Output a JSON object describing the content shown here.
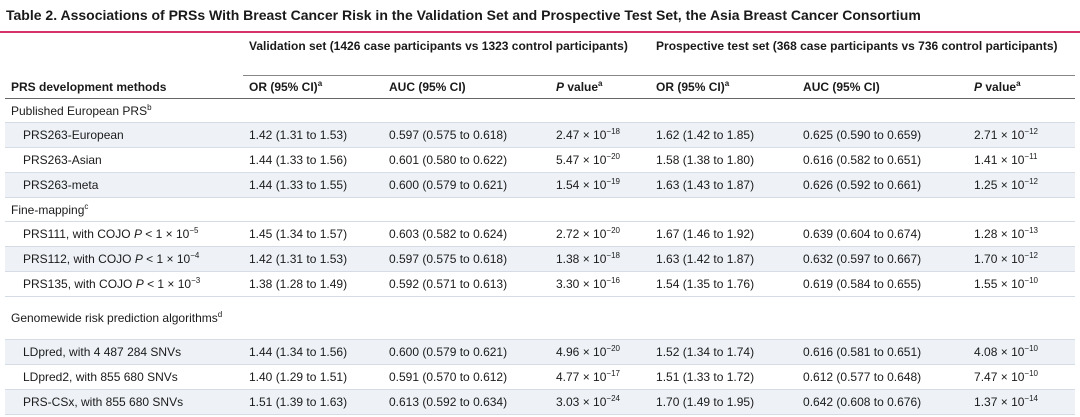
{
  "title": "Table 2. Associations of PRSs With Breast Cancer Risk in the Validation Set and Prospective Test Set, the Asia Breast Cancer Consortium",
  "header": {
    "row_label": "PRS development methods",
    "groups": [
      "Validation set (1426 case participants vs 1323 control participants)",
      "Prospective test set (368 case participants vs 736 control participants)"
    ],
    "columns": [
      {
        "text": "OR (95% CI)",
        "sup": "a"
      },
      "AUC (95% CI)",
      {
        "italic": "P",
        "text": " value",
        "sup": "a"
      },
      {
        "text": "OR (95% CI)",
        "sup": "a"
      },
      "AUC (95% CI)",
      {
        "italic": "P",
        "text": " value",
        "sup": "a"
      }
    ]
  },
  "sections": [
    {
      "label": {
        "text": "Published European PRS",
        "sup": "b"
      },
      "rows": [
        {
          "label": "PRS263-European",
          "cells": [
            "1.42 (1.31 to 1.53)",
            "0.597 (0.575 to 0.618)",
            {
              "mantissa": "2.47 × 10",
              "exponent": "−18"
            },
            "1.62 (1.42 to 1.85)",
            "0.625 (0.590 to 0.659)",
            {
              "mantissa": "2.71 × 10",
              "exponent": "−12"
            }
          ]
        },
        {
          "label": "PRS263-Asian",
          "cells": [
            "1.44 (1.33 to 1.56)",
            "0.601 (0.580 to 0.622)",
            {
              "mantissa": "5.47 × 10",
              "exponent": "−20"
            },
            "1.58 (1.38 to 1.80)",
            "0.616 (0.582 to 0.651)",
            {
              "mantissa": "1.41 × 10",
              "exponent": "−11"
            }
          ]
        },
        {
          "label": "PRS263-meta",
          "cells": [
            "1.44 (1.33 to 1.55)",
            "0.600 (0.579 to 0.621)",
            {
              "mantissa": "1.54 × 10",
              "exponent": "−19"
            },
            "1.63 (1.43 to 1.87)",
            "0.626 (0.592 to 0.661)",
            {
              "mantissa": "1.25 × 10",
              "exponent": "−12"
            }
          ]
        }
      ]
    },
    {
      "label": {
        "text": "Fine-mapping",
        "sup": "c"
      },
      "rows": [
        {
          "label": {
            "pre": "PRS111, with COJO ",
            "italic": "P",
            "post": " < 1 × 10",
            "sup": "−5"
          },
          "cells": [
            "1.45 (1.34 to 1.57)",
            "0.603 (0.582 to 0.624)",
            {
              "mantissa": "2.72 × 10",
              "exponent": "−20"
            },
            "1.67 (1.46 to 1.92)",
            "0.639 (0.604 to 0.674)",
            {
              "mantissa": "1.28 × 10",
              "exponent": "−13"
            }
          ]
        },
        {
          "label": {
            "pre": "PRS112, with COJO ",
            "italic": "P",
            "post": " < 1 × 10",
            "sup": "−4"
          },
          "cells": [
            "1.42 (1.31 to 1.53)",
            "0.597 (0.575 to 0.618)",
            {
              "mantissa": "1.38 × 10",
              "exponent": "−18"
            },
            "1.63 (1.42 to 1.87)",
            "0.632 (0.597 to 0.667)",
            {
              "mantissa": "1.70 × 10",
              "exponent": "−12"
            }
          ]
        },
        {
          "label": {
            "pre": "PRS135, with COJO ",
            "italic": "P",
            "post": " < 1 × 10",
            "sup": "−3"
          },
          "cells": [
            "1.38 (1.28 to 1.49)",
            "0.592 (0.571 to 0.613)",
            {
              "mantissa": "3.30 × 10",
              "exponent": "−16"
            },
            "1.54 (1.35 to 1.76)",
            "0.619 (0.584 to 0.655)",
            {
              "mantissa": "1.55 × 10",
              "exponent": "−10"
            }
          ]
        }
      ]
    },
    {
      "label": {
        "text": "Genomewide risk prediction algorithms",
        "sup": "d"
      },
      "rows": [
        {
          "label": "LDpred, with 4 487 284 SNVs",
          "cells": [
            "1.44 (1.34 to 1.56)",
            "0.600 (0.579 to 0.621)",
            {
              "mantissa": "4.96 × 10",
              "exponent": "−20"
            },
            "1.52 (1.34 to 1.74)",
            "0.616 (0.581 to 0.651)",
            {
              "mantissa": "4.08 × 10",
              "exponent": "−10"
            }
          ]
        },
        {
          "label": "LDpred2, with 855 680 SNVs",
          "cells": [
            "1.40 (1.29 to 1.51)",
            "0.591 (0.570 to 0.612)",
            {
              "mantissa": "4.77 × 10",
              "exponent": "−17"
            },
            "1.51 (1.33 to 1.72)",
            "0.612 (0.577 to 0.648)",
            {
              "mantissa": "7.47 × 10",
              "exponent": "−10"
            }
          ]
        },
        {
          "label": "PRS-CSx, with 855 680 SNVs",
          "cells": [
            "1.51 (1.39 to 1.63)",
            "0.613 (0.592 to 0.634)",
            {
              "mantissa": "3.03 × 10",
              "exponent": "−24"
            },
            "1.70 (1.49 to 1.95)",
            "0.642 (0.608 to 0.676)",
            {
              "mantissa": "1.37 × 10",
              "exponent": "−14"
            }
          ]
        }
      ]
    }
  ]
}
